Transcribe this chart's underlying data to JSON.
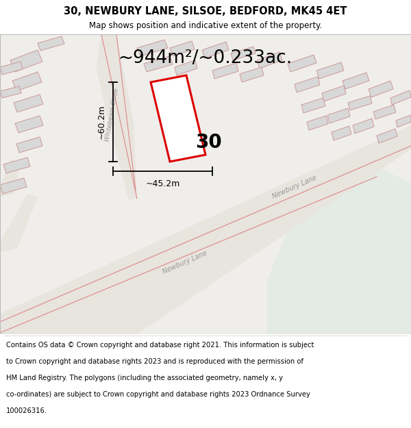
{
  "title": "30, NEWBURY LANE, SILSOE, BEDFORD, MK45 4ET",
  "subtitle": "Map shows position and indicative extent of the property.",
  "area_label": "~944m²/~0.233ac.",
  "width_label": "~45.2m",
  "height_label": "~60.2m",
  "number_label": "30",
  "footer": "Contains OS data © Crown copyright and database right 2021. This information is subject to Crown copyright and database rights 2023 and is reproduced with the permission of HM Land Registry. The polygons (including the associated geometry, namely x, y co-ordinates) are subject to Crown copyright and database rights 2023 Ordnance Survey 100026316.",
  "bg_color": "#ffffff",
  "map_bg": "#f0eeeb",
  "plot_color": "#dd0000",
  "building_fill": "#d8d8d8",
  "building_edge": "#cc9999",
  "road_fill": "#e8e4de",
  "green_fill": "#e4ebe4",
  "title_fontsize": 10.5,
  "subtitle_fontsize": 8.5,
  "area_fontsize": 19,
  "number_fontsize": 20,
  "footer_fontsize": 7.2,
  "road_text_color": "#999999",
  "road_text_size": 7.0
}
